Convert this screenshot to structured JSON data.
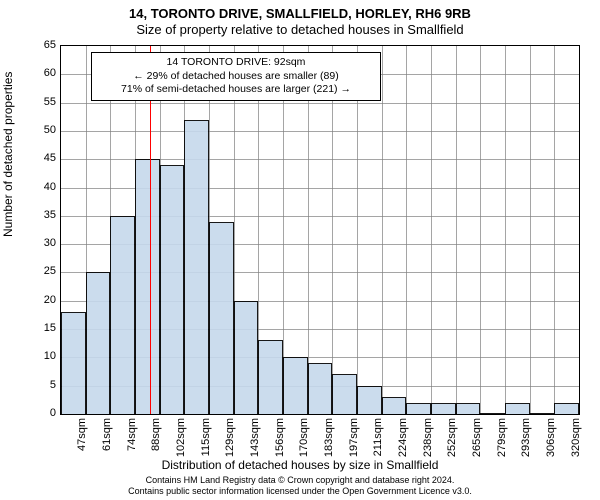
{
  "chart": {
    "type": "histogram",
    "title_main": "14, TORONTO DRIVE, SMALLFIELD, HORLEY, RH6 9RB",
    "title_sub": "Size of property relative to detached houses in Smallfield",
    "title_fontsize": 13,
    "x_axis_label": "Distribution of detached houses by size in Smallfield",
    "y_axis_label": "Number of detached properties",
    "label_fontsize": 12,
    "tick_fontsize": 11,
    "background_color": "#ffffff",
    "grid_color": "#7f7f7f",
    "bar_fill": "#c6d9ec",
    "bar_edge": "#000000",
    "bar_fill_opacity": 0.9,
    "ylim": [
      0,
      65
    ],
    "ytick_step": 5,
    "categories": [
      "47sqm",
      "61sqm",
      "74sqm",
      "88sqm",
      "102sqm",
      "115sqm",
      "129sqm",
      "143sqm",
      "156sqm",
      "170sqm",
      "183sqm",
      "197sqm",
      "211sqm",
      "224sqm",
      "238sqm",
      "252sqm",
      "265sqm",
      "279sqm",
      "293sqm",
      "306sqm",
      "320sqm"
    ],
    "values": [
      18,
      25,
      35,
      45,
      44,
      52,
      34,
      20,
      13,
      10,
      9,
      7,
      5,
      3,
      2,
      2,
      2,
      0,
      2,
      0,
      2
    ],
    "marker": {
      "position_value": 92,
      "color": "#ff0000",
      "width": 1
    },
    "annotation": {
      "line1": "14 TORONTO DRIVE: 92sqm",
      "line2": "← 29% of detached houses are smaller (89)",
      "line3": "71% of semi-detached houses are larger (221) →",
      "fontsize": 10.5,
      "border_color": "#000000",
      "bg_color": "#ffffff"
    },
    "footer_line1": "Contains HM Land Registry data © Crown copyright and database right 2024.",
    "footer_line2": "Contains public sector information licensed under the Open Government Licence v3.0.",
    "footer_fontsize": 9
  }
}
